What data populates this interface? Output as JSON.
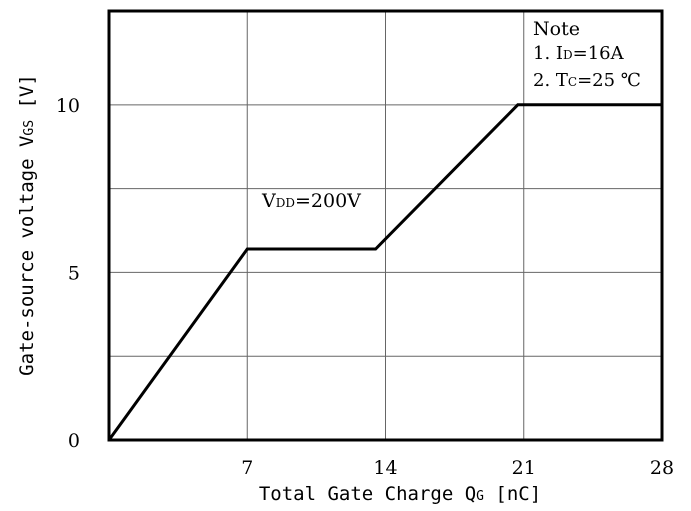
{
  "chart_data": {
    "type": "line",
    "x": [
      0,
      7,
      13.5,
      20.7,
      28
    ],
    "series": [
      {
        "values": [
          0,
          5.7,
          5.7,
          10,
          10
        ]
      }
    ],
    "xlabel": "Total Gate Charge Qg [nC]",
    "xlabel_parts": {
      "before": "Total Gate Charge Q",
      "subscript": "G",
      "after": " [nC]"
    },
    "ylabel": "Gate-source voltage VGS [V]",
    "ylabel_parts": {
      "before": "Gate-source voltage V",
      "subscript": "GS",
      "after": " [V]"
    },
    "xlim": [
      0,
      28
    ],
    "ylim": [
      0,
      12.8
    ],
    "xticks": [
      7,
      14,
      21,
      28
    ],
    "xtick_labels": [
      "7",
      "14",
      "21",
      "28"
    ],
    "yticks": [
      0,
      5,
      10
    ],
    "ytick_labels": [
      "0",
      "5",
      "10"
    ],
    "grid": true,
    "grid_y": [
      2.5,
      5,
      7.5,
      10
    ],
    "annotations": {
      "vdd": {
        "prefix": "V",
        "subscript": "DD",
        "suffix": "=200V"
      },
      "note_title": "Note",
      "note_line1": {
        "prefix": "1. I",
        "subscript": "D",
        "suffix": "=16A"
      },
      "note_line2": {
        "prefix": "2. T",
        "subscript": "C",
        "suffix": "=25 ℃"
      }
    },
    "line_color": "#000000",
    "grid_color": "#666666"
  }
}
